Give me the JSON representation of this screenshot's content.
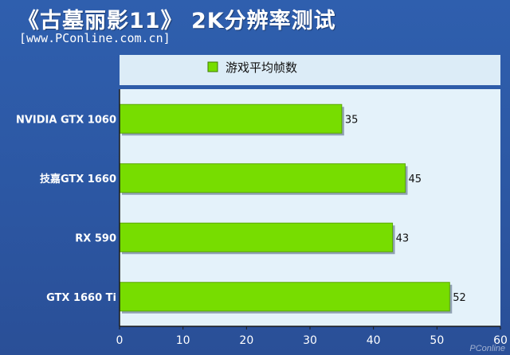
{
  "title": "《古墓丽影11》 2K分辨率测试",
  "source": "[www.PConline.com.cn]",
  "watermark": "PConline",
  "colors": {
    "bar": "#77dd00",
    "bar_shadow": "#4a5f77",
    "plot_bg": "#e4f2fa",
    "legend_bg": "#dcecf7",
    "text_dark": "#111111",
    "text_light": "#ffffff"
  },
  "chart_data": {
    "type": "bar",
    "orientation": "horizontal",
    "legend": "游戏平均帧数",
    "categories": [
      "NVIDIA GTX 1060",
      "技嘉GTX 1660",
      "RX 590",
      "GTX 1660 Ti"
    ],
    "series": [
      {
        "name": "游戏平均帧数",
        "values": [
          35,
          45,
          43,
          52
        ]
      }
    ],
    "xlim": [
      0,
      60
    ],
    "xticks": [
      0,
      10,
      20,
      30,
      40,
      50,
      60
    ],
    "legend_position": "top",
    "grid": false
  }
}
